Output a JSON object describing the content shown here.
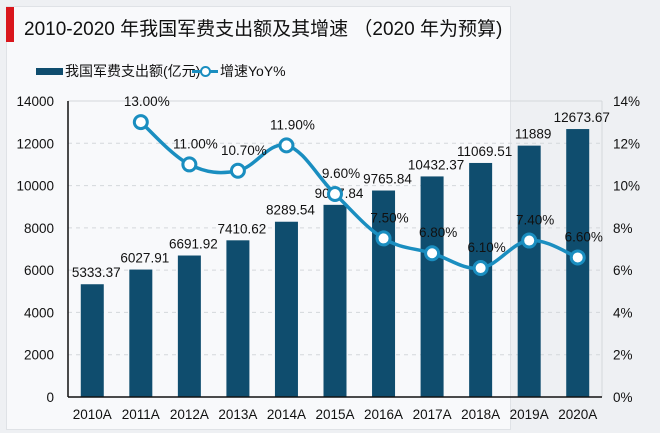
{
  "title": "2010-2020 年我国军费支出额及其增速 （2020 年为预算)",
  "colors": {
    "bar": "#0f4d6e",
    "line": "#1a8ec0",
    "accent": "#d9161c"
  },
  "chart_data": {
    "type": "bar+line",
    "title": "2010-2020 年我国军费支出额及其增速 （2020 年为预算)",
    "categories": [
      "2010A",
      "2011A",
      "2012A",
      "2013A",
      "2014A",
      "2015A",
      "2016A",
      "2017A",
      "2018A",
      "2019A",
      "2020A"
    ],
    "series": [
      {
        "name": "我国军费支出额(亿元)",
        "type": "bar",
        "axis": "left",
        "values": [
          5333.37,
          6027.91,
          6691.92,
          7410.62,
          8289.54,
          9087.84,
          9765.84,
          10432.37,
          11069.51,
          11889,
          12673.67
        ],
        "labels": [
          "5333.37",
          "6027.91",
          "6691.92",
          "7410.62",
          "8289.54",
          "9087.84",
          "9765.84",
          "10432.37",
          "11069.51",
          "11889",
          "12673.67"
        ]
      },
      {
        "name": "增速YoY%",
        "type": "line",
        "axis": "right",
        "values": [
          null,
          13.0,
          11.0,
          10.7,
          11.9,
          9.6,
          7.5,
          6.8,
          6.1,
          7.4,
          6.6
        ],
        "labels": [
          null,
          "13.00%",
          "11.00%",
          "10.70%",
          "11.90%",
          "9.60%",
          "7.50%",
          "6.80%",
          "6.10%",
          "7.40%",
          "6.60%"
        ]
      }
    ],
    "left_axis": {
      "ylim": [
        0,
        14000
      ],
      "ticks": [
        "0",
        "2000",
        "4000",
        "6000",
        "8000",
        "10000",
        "12000",
        "14000"
      ]
    },
    "right_axis": {
      "ylim": [
        0,
        14
      ],
      "ticks": [
        "0%",
        "2%",
        "4%",
        "6%",
        "8%",
        "10%",
        "12%",
        "14%"
      ]
    },
    "grid": true,
    "legend": "top-left"
  }
}
